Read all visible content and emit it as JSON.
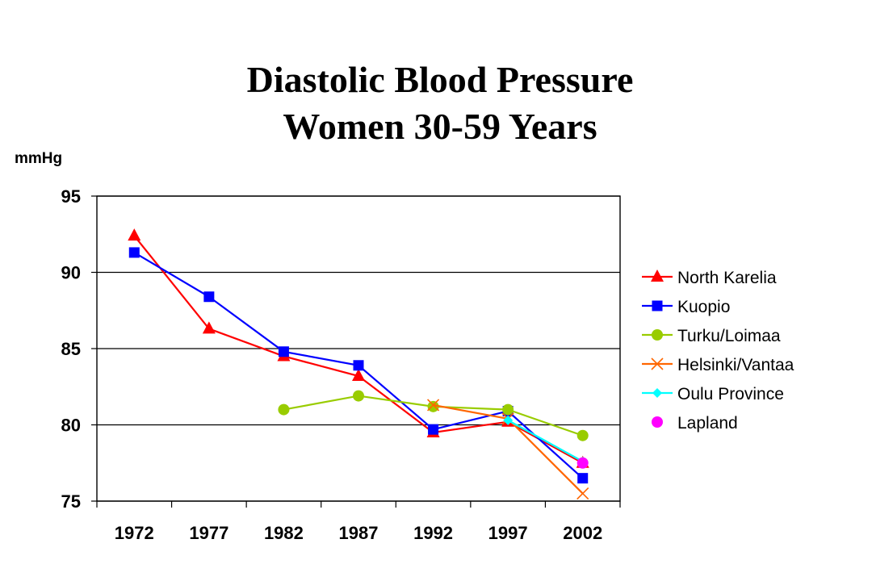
{
  "chart_data": {
    "type": "line",
    "title": [
      "Diastolic Blood Pressure",
      "Women 30-59 Years"
    ],
    "ylabel": "mmHg",
    "xlabel": "",
    "categories": [
      "1972",
      "1977",
      "1982",
      "1987",
      "1992",
      "1997",
      "2002"
    ],
    "yticks": [
      75,
      80,
      85,
      90,
      95
    ],
    "ylim": [
      75,
      95
    ],
    "grid": "horizontal",
    "legend_position": "right",
    "series": [
      {
        "name": "North Karelia",
        "color": "#ff0000",
        "marker": "triangle",
        "values": [
          92.4,
          86.3,
          84.5,
          83.2,
          79.5,
          80.2,
          77.5
        ]
      },
      {
        "name": "Kuopio",
        "color": "#0000ff",
        "marker": "square",
        "values": [
          91.3,
          88.4,
          84.8,
          83.9,
          79.7,
          80.9,
          76.5
        ]
      },
      {
        "name": "Turku/Loimaa",
        "color": "#99cc00",
        "marker": "circle",
        "values": [
          null,
          null,
          81.0,
          81.9,
          81.2,
          81.0,
          79.3
        ]
      },
      {
        "name": "Helsinki/Vantaa",
        "color": "#ff6600",
        "marker": "x",
        "values": [
          null,
          null,
          null,
          null,
          81.3,
          80.4,
          75.5
        ]
      },
      {
        "name": "Oulu Province",
        "color": "#00ffff",
        "marker": "diamond",
        "values": [
          null,
          null,
          null,
          null,
          null,
          80.3,
          77.6
        ]
      },
      {
        "name": "Lapland",
        "color": "#ff00ff",
        "marker": "circle",
        "noline": true,
        "values": [
          null,
          null,
          null,
          null,
          null,
          null,
          77.5
        ]
      }
    ]
  }
}
